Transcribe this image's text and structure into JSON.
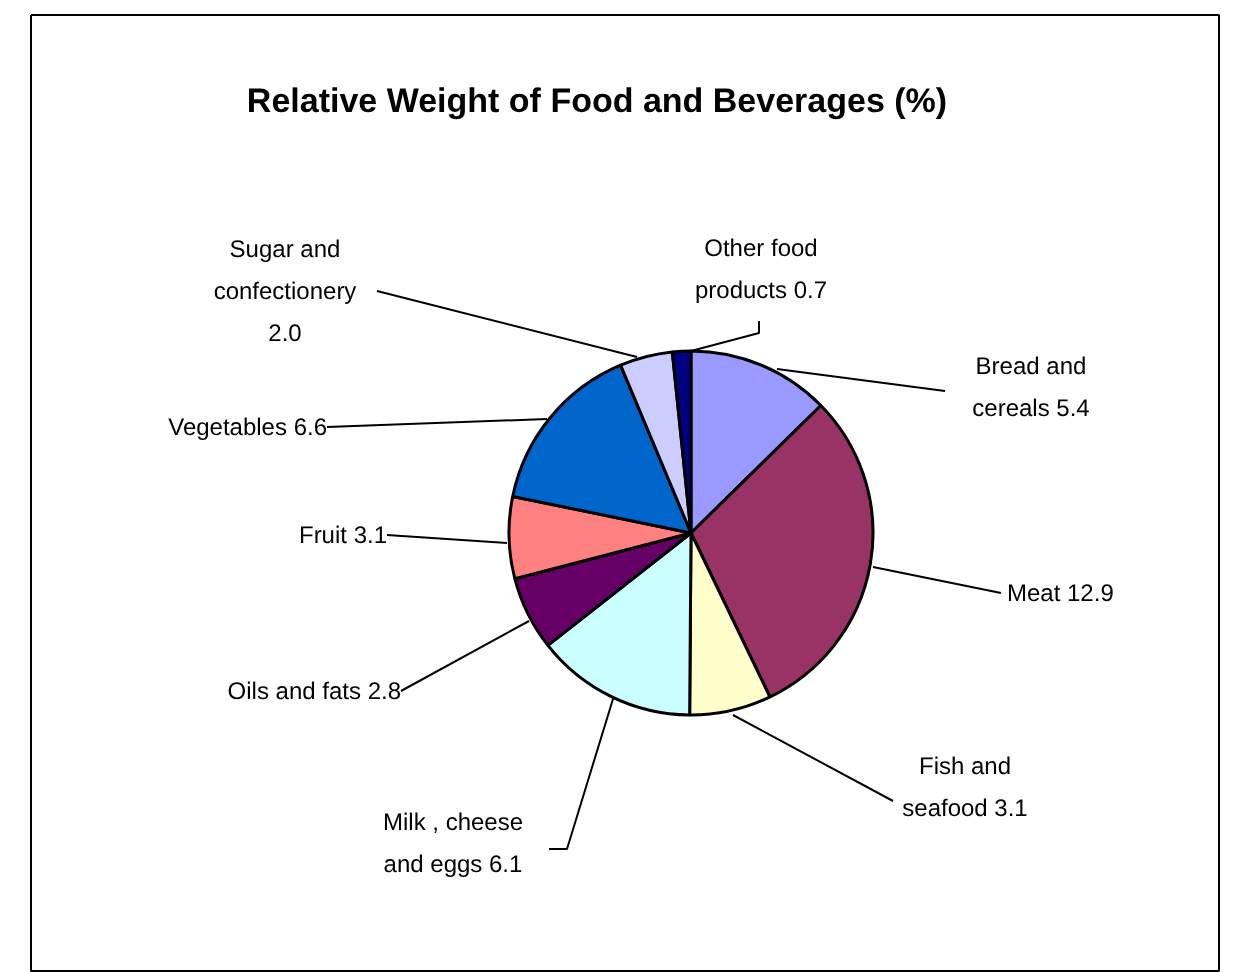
{
  "chart_data": {
    "type": "pie",
    "title": "Relative Weight of Food and Beverages (%)",
    "categories": [
      "Bread and\ncereals 5.4",
      "Meat 12.9",
      "Fish and\nseafood 3.1",
      "Milk , cheese\nand eggs 6.1",
      "Oils and fats 2.8",
      "Fruit 3.1",
      "Vegetables 6.6",
      "Sugar and\nconfectionery\n2.0",
      "Other food\nproducts 0.7"
    ],
    "values": [
      5.4,
      12.9,
      3.1,
      6.1,
      2.8,
      3.1,
      6.6,
      2.0,
      0.7
    ],
    "colors": [
      "#9999ff",
      "#993366",
      "#ffffcc",
      "#ccffff",
      "#660066",
      "#ff8080",
      "#0066cc",
      "#ccccff",
      "#000080"
    ]
  }
}
